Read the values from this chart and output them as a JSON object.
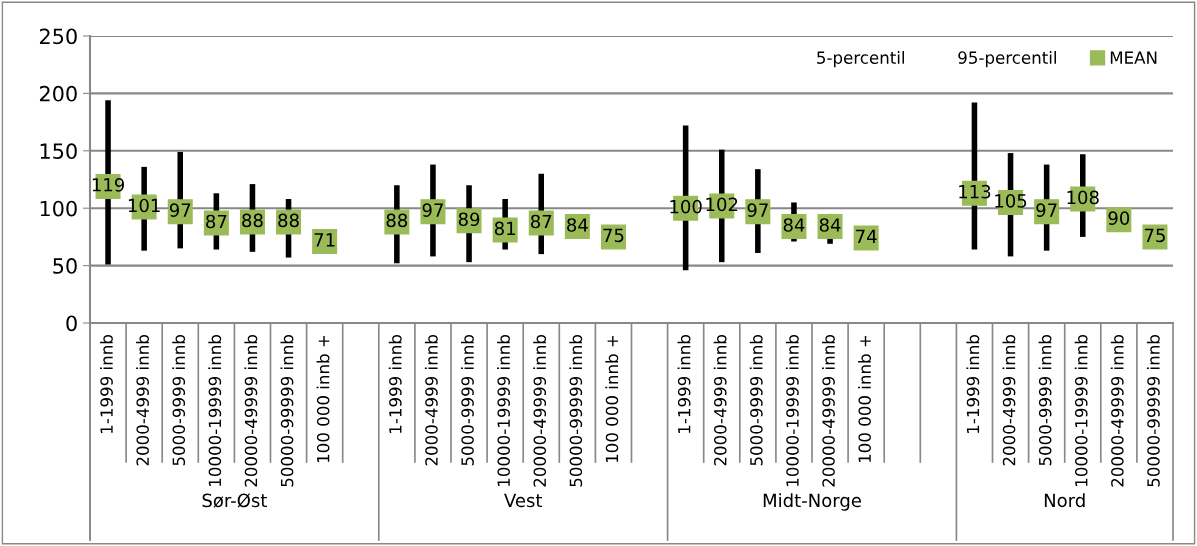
{
  "chart_data": {
    "type": "scatter",
    "categories": [
      "1-1999 innb",
      "2000-4999 innb",
      "5000-9999 innb",
      "10000-19999 innb",
      "20000-49999 innb",
      "50000-99999 innb",
      "100 000 innb +",
      null,
      "1-1999 innb",
      "2000-4999 innb",
      "5000-9999 innb",
      "10000-19999 innb",
      "20000-49999 innb",
      "50000-99999 innb",
      "100 000 innb +",
      null,
      "1-1999 innb",
      "2000-4999 innb",
      "5000-9999 innb",
      "10000-19999 innb",
      "20000-49999 innb",
      "100 000 innb +",
      null,
      null,
      "1-1999 innb",
      "2000-4999 innb",
      "5000-9999 innb",
      "10000-19999 innb",
      "20000-49999 innb",
      "50000-99999 innb"
    ],
    "annotations": [
      "Sør-Øst",
      "Vest",
      "Midt-Norge",
      "Nord",
      "5-percentil",
      "95-percentil"
    ],
    "series": [
      {
        "name": "MEAN",
        "color": "#9bbb59",
        "values": [
          119,
          101,
          97,
          87,
          88,
          88,
          71,
          null,
          88,
          97,
          89,
          81,
          87,
          84,
          75,
          null,
          100,
          102,
          97,
          84,
          84,
          74,
          null,
          null,
          113,
          105,
          97,
          108,
          90,
          75
        ],
        "errors": [
          [
            51,
            194
          ],
          [
            63,
            136
          ],
          [
            65,
            149
          ],
          [
            64,
            113
          ],
          [
            62,
            121
          ],
          [
            57,
            108
          ],
          null,
          null,
          [
            52,
            120
          ],
          [
            58,
            138
          ],
          [
            53,
            120
          ],
          [
            64,
            108
          ],
          [
            60,
            130
          ],
          null,
          null,
          null,
          [
            46,
            172
          ],
          [
            53,
            151
          ],
          [
            61,
            134
          ],
          [
            71,
            105
          ],
          [
            69,
            95
          ],
          null,
          null,
          null,
          [
            64,
            192
          ],
          [
            58,
            148
          ],
          [
            63,
            138
          ],
          [
            75,
            147
          ],
          null,
          null
        ]
      }
    ],
    "marker": "square",
    "data_labels": true,
    "ylim": [
      0,
      250
    ],
    "yticks": [
      0,
      50,
      100,
      150,
      200,
      250
    ],
    "grid": "y",
    "legend": "top right"
  }
}
